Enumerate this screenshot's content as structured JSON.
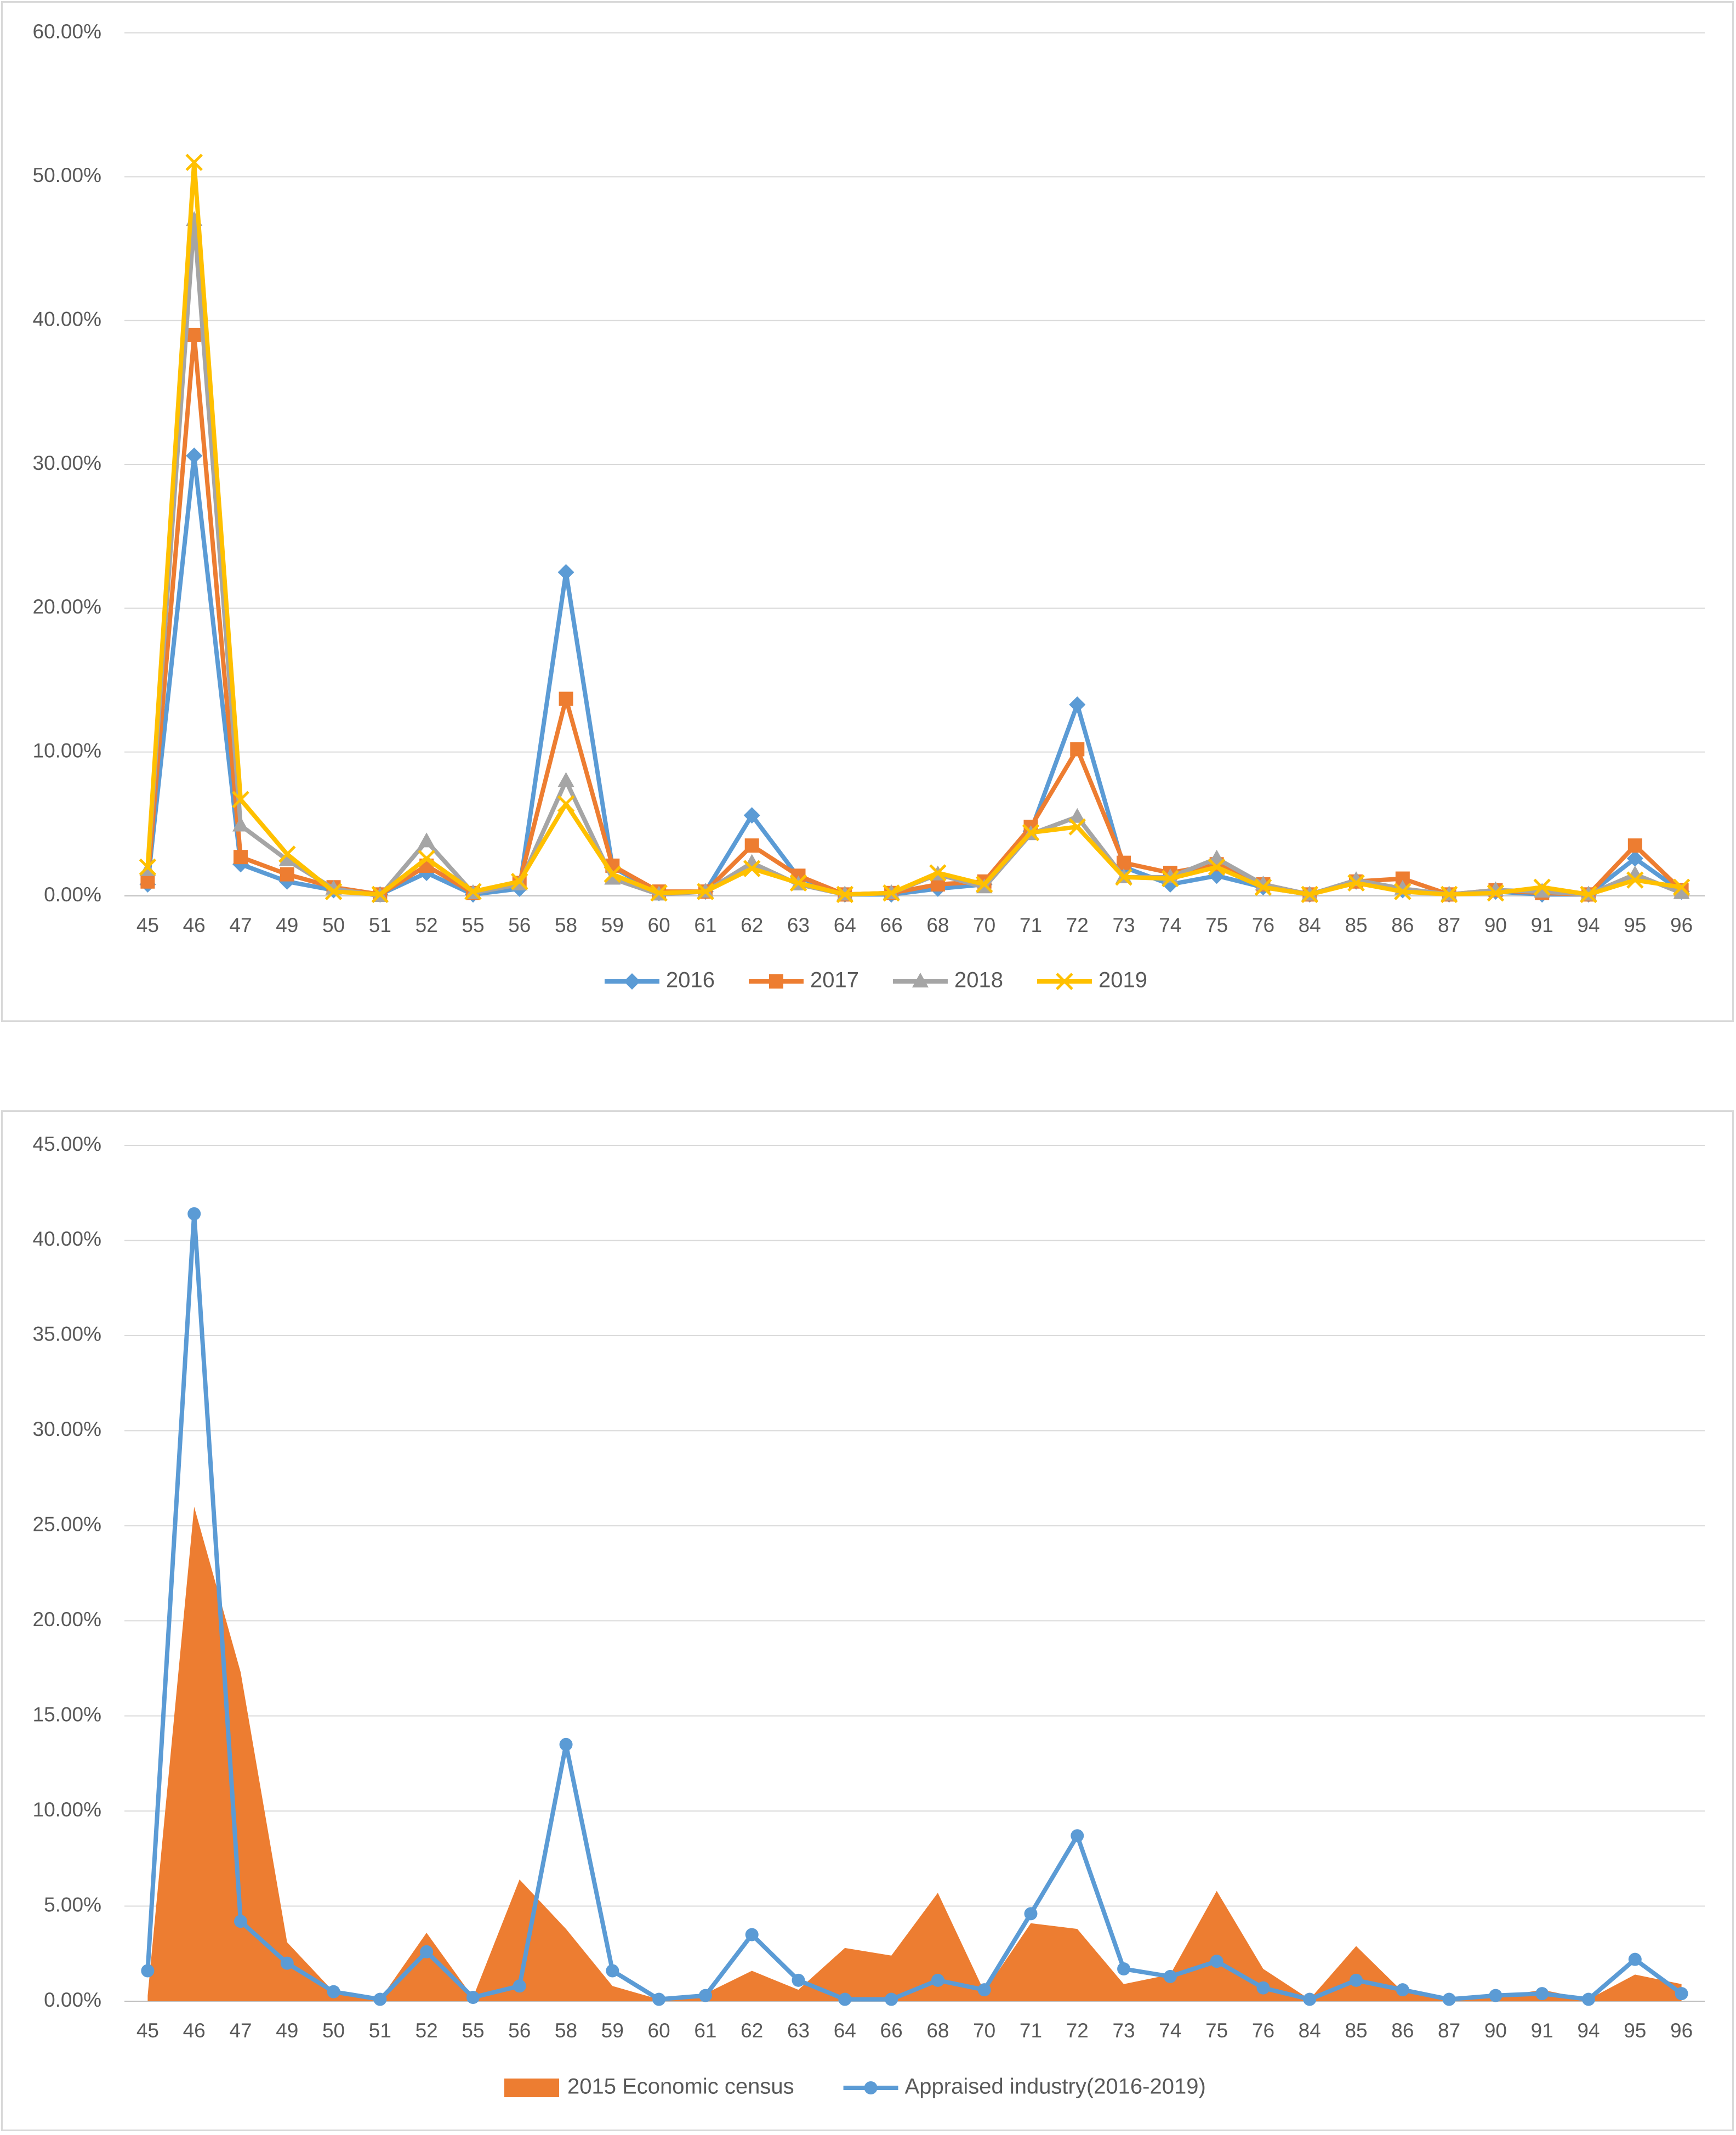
{
  "chart_data": [
    {
      "type": "line",
      "categories": [
        "45",
        "46",
        "47",
        "49",
        "50",
        "51",
        "52",
        "55",
        "56",
        "58",
        "59",
        "60",
        "61",
        "62",
        "63",
        "64",
        "66",
        "68",
        "70",
        "71",
        "72",
        "73",
        "74",
        "75",
        "76",
        "84",
        "85",
        "86",
        "87",
        "90",
        "91",
        "94",
        "95",
        "96"
      ],
      "y_tick_labels": [
        "0.00%",
        "10.00%",
        "20.00%",
        "30.00%",
        "40.00%",
        "50.00%",
        "60.00%"
      ],
      "ylim": [
        0,
        60
      ],
      "grid": true,
      "legend_position": "bottom",
      "series": [
        {
          "name": "2016",
          "color": "#5b9bd5",
          "marker": "diamond",
          "values": [
            0.8,
            30.6,
            2.2,
            1.0,
            0.4,
            0.1,
            1.6,
            0.1,
            0.5,
            22.5,
            2.0,
            0.2,
            0.3,
            5.6,
            1.3,
            0.1,
            0.1,
            0.5,
            0.8,
            4.5,
            13.3,
            2.0,
            0.8,
            1.4,
            0.6,
            0.1,
            1.0,
            0.4,
            0.1,
            0.3,
            0.1,
            0.1,
            2.6,
            0.3
          ]
        },
        {
          "name": "2017",
          "color": "#ed7d31",
          "marker": "square",
          "values": [
            1.0,
            39.0,
            2.7,
            1.5,
            0.6,
            0.1,
            2.1,
            0.2,
            0.9,
            13.7,
            2.1,
            0.3,
            0.3,
            3.5,
            1.4,
            0.1,
            0.2,
            0.8,
            1.0,
            4.8,
            10.2,
            2.3,
            1.6,
            2.2,
            0.8,
            0.1,
            1.0,
            1.2,
            0.1,
            0.4,
            0.2,
            0.1,
            3.5,
            0.4
          ]
        },
        {
          "name": "2018",
          "color": "#a5a5a5",
          "marker": "triangle",
          "values": [
            1.8,
            47.0,
            4.9,
            2.5,
            0.5,
            0.0,
            3.8,
            0.2,
            0.8,
            8.0,
            1.2,
            0.1,
            0.3,
            2.3,
            0.8,
            0.1,
            0.2,
            1.5,
            0.6,
            4.3,
            5.5,
            1.3,
            1.3,
            2.6,
            0.8,
            0.1,
            1.1,
            0.5,
            0.1,
            0.4,
            0.3,
            0.1,
            1.5,
            0.2
          ]
        },
        {
          "name": "2019",
          "color": "#ffc000",
          "marker": "x",
          "values": [
            2.0,
            51.0,
            6.7,
            2.9,
            0.3,
            0.1,
            2.6,
            0.3,
            1.0,
            6.4,
            1.5,
            0.2,
            0.3,
            1.9,
            0.9,
            0.1,
            0.2,
            1.6,
            0.8,
            4.4,
            4.8,
            1.3,
            1.2,
            2.0,
            0.6,
            0.1,
            0.9,
            0.3,
            0.1,
            0.2,
            0.6,
            0.1,
            1.1,
            0.6
          ]
        }
      ]
    },
    {
      "type": "area",
      "categories": [
        "45",
        "46",
        "47",
        "49",
        "50",
        "51",
        "52",
        "55",
        "56",
        "58",
        "59",
        "60",
        "61",
        "62",
        "63",
        "64",
        "66",
        "68",
        "70",
        "71",
        "72",
        "73",
        "74",
        "75",
        "76",
        "84",
        "85",
        "86",
        "87",
        "90",
        "91",
        "94",
        "95",
        "96"
      ],
      "y_tick_labels": [
        "0.00%",
        "5.00%",
        "10.00%",
        "15.00%",
        "20.00%",
        "25.00%",
        "30.00%",
        "35.00%",
        "40.00%",
        "45.00%"
      ],
      "ylim": [
        0,
        45
      ],
      "grid": true,
      "legend_position": "bottom",
      "series": [
        {
          "name": "2015 Economic census",
          "type": "area",
          "color": "#ed7d31",
          "values": [
            0.3,
            26.0,
            17.3,
            3.1,
            0.5,
            0.1,
            3.6,
            0.2,
            6.4,
            3.8,
            0.8,
            0.1,
            0.4,
            1.6,
            0.6,
            2.8,
            2.4,
            5.7,
            0.5,
            4.1,
            3.8,
            0.9,
            1.4,
            5.8,
            1.7,
            0.1,
            2.9,
            0.5,
            0.1,
            0.2,
            0.6,
            0.1,
            1.4,
            0.9
          ]
        },
        {
          "name": "Appraised industry(2016-2019)",
          "type": "line",
          "color": "#5b9bd5",
          "marker": "circle",
          "values": [
            1.6,
            41.4,
            4.2,
            2.0,
            0.5,
            0.1,
            2.6,
            0.2,
            0.8,
            13.5,
            1.6,
            0.1,
            0.3,
            3.5,
            1.1,
            0.1,
            0.1,
            1.1,
            0.6,
            4.6,
            8.7,
            1.7,
            1.3,
            2.1,
            0.7,
            0.1,
            1.1,
            0.6,
            0.1,
            0.3,
            0.4,
            0.1,
            2.2,
            0.4
          ]
        }
      ]
    }
  ]
}
